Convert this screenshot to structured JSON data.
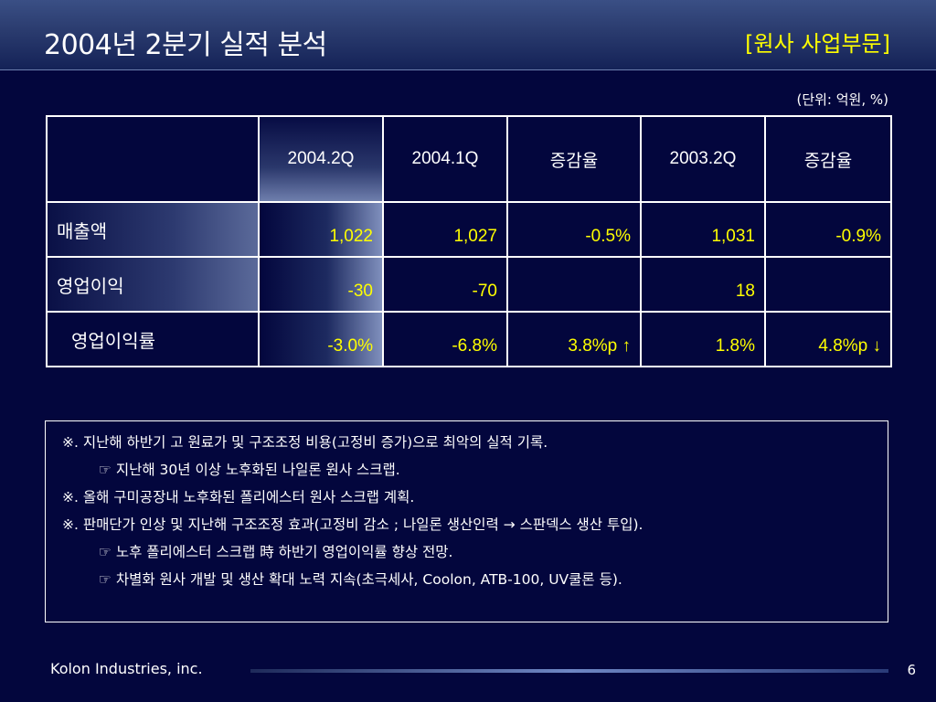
{
  "header": {
    "title": "2004년 2분기 실적 분석",
    "subtitle": "[원사 사업부문]"
  },
  "unit_note": "(단위: 억원, %)",
  "table": {
    "columns": [
      "",
      "2004.2Q",
      "2004.1Q",
      "증감율",
      "2003.2Q",
      "증감율"
    ],
    "rows": [
      {
        "label": "매출액",
        "values": [
          "1,022",
          "1,027",
          "-0.5%",
          "1,031",
          "-0.9%"
        ]
      },
      {
        "label": "영업이익",
        "values": [
          "-30",
          "-70",
          "",
          "18",
          ""
        ]
      },
      {
        "label": "영업이익률",
        "values": [
          "-3.0%",
          "-6.8%",
          "3.8%p ↑",
          "1.8%",
          "4.8%p ↓"
        ]
      }
    ]
  },
  "notes": [
    "※. 지난해 하반기 고 원료가 및 구조조정 비용(고정비 증가)으로 최악의 실적 기록.",
    "☞ 지난해 30년 이상 노후화된 나일론 원사 스크랩.",
    "※. 올해 구미공장내 노후화된 폴리에스터 원사 스크랩 계획.",
    "※. 판매단가 인상 및 지난해 구조조정 효과(고정비 감소 ; 나일론 생산인력 → 스판덱스 생산 투입).",
    "☞ 노후 폴리에스터 스크랩 時 하반기 영업이익률 향상 전망.",
    "☞ 차별화 원사 개발 및 생산 확대 노력 지속(초극세사, Coolon, ATB-100, UV쿨론 등)."
  ],
  "footer": {
    "company": "Kolon Industries, inc.",
    "page": "6"
  },
  "colors": {
    "background": "#03063d",
    "accent_yellow": "#ffff00",
    "text_white": "#ffffff"
  }
}
